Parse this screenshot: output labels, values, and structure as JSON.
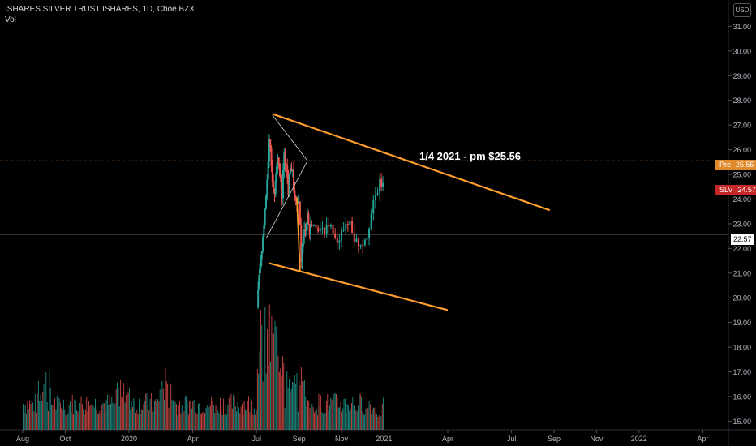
{
  "legend": {
    "title": "ISHARES SILVER TRUST ISHARES, 1D, Cboe BZX",
    "sub": "Vol"
  },
  "currency": "USD",
  "annotation": "1/4 2021 - pm $25.56",
  "price_tags": {
    "pre_symbol": "Pre",
    "pre_value": "25.55",
    "last_symbol": "SLV",
    "last_value": "24.57",
    "horizontal_value": "22.57"
  },
  "colors": {
    "background": "#000000",
    "up": "#26a69a",
    "down": "#ef5350",
    "trendline": "#ff9d2e",
    "pre_tag": "#e08a2b",
    "last_tag": "#c62828"
  },
  "chart_data": {
    "type": "candlestick",
    "title": "ISHARES SILVER TRUST ISHARES, 1D, Cboe BZX",
    "y_ticks": [
      15,
      16,
      17,
      18,
      19,
      20,
      21,
      22,
      23,
      24,
      25,
      26,
      27,
      28,
      29,
      30,
      31
    ],
    "y_tick_labels": [
      "15.00",
      "16.00",
      "17.00",
      "18.00",
      "19.00",
      "20.00",
      "21.00",
      "22.00",
      "23.00",
      "24.00",
      "25.00",
      "26.00",
      "27.00",
      "28.00",
      "29.00",
      "30.00",
      "31.00"
    ],
    "ylim": [
      14.85,
      31.9
    ],
    "x_ticks": [
      {
        "label": "Aug",
        "pos": 0.0
      },
      {
        "label": "Oct",
        "pos": 2.0
      },
      {
        "label": "2020",
        "pos": 5.0
      },
      {
        "label": "Apr",
        "pos": 8.0
      },
      {
        "label": "Jul",
        "pos": 11.0
      },
      {
        "label": "Sep",
        "pos": 13.0
      },
      {
        "label": "Nov",
        "pos": 15.0
      },
      {
        "label": "2021",
        "pos": 17.0
      },
      {
        "label": "Apr",
        "pos": 20.0
      },
      {
        "label": "Jul",
        "pos": 23.0
      },
      {
        "label": "Sep",
        "pos": 25.0
      },
      {
        "label": "Nov",
        "pos": 27.0
      },
      {
        "label": "2022",
        "pos": 29.0
      },
      {
        "label": "Apr",
        "pos": 32.0
      }
    ],
    "x_units": "months since Aug 2019",
    "price_path": [
      [
        11.05,
        19.6
      ],
      [
        11.1,
        20.6
      ],
      [
        11.2,
        21.4
      ],
      [
        11.3,
        22.6
      ],
      [
        11.4,
        23.4
      ],
      [
        11.5,
        24.8
      ],
      [
        11.6,
        26.6
      ],
      [
        11.7,
        25.5
      ],
      [
        11.8,
        24.2
      ],
      [
        11.9,
        24.6
      ],
      [
        12.0,
        25.8
      ],
      [
        12.1,
        25.0
      ],
      [
        12.2,
        24.0
      ],
      [
        12.3,
        26.0
      ],
      [
        12.4,
        25.3
      ],
      [
        12.5,
        24.3
      ],
      [
        12.6,
        25.4
      ],
      [
        12.7,
        25.0
      ],
      [
        12.8,
        24.0
      ],
      [
        12.9,
        23.6
      ],
      [
        13.0,
        24.1
      ],
      [
        13.1,
        21.6
      ],
      [
        13.2,
        22.4
      ],
      [
        13.3,
        22.9
      ],
      [
        13.4,
        23.4
      ],
      [
        13.5,
        22.6
      ],
      [
        13.6,
        23.1
      ],
      [
        13.8,
        22.7
      ],
      [
        14.0,
        23.0
      ],
      [
        14.2,
        22.4
      ],
      [
        14.4,
        23.1
      ],
      [
        14.6,
        22.6
      ],
      [
        14.8,
        22.1
      ],
      [
        15.0,
        22.9
      ],
      [
        15.2,
        22.8
      ],
      [
        15.4,
        23.1
      ],
      [
        15.6,
        22.4
      ],
      [
        15.8,
        22.2
      ],
      [
        16.0,
        22.3
      ],
      [
        16.2,
        22.6
      ],
      [
        16.4,
        23.4
      ],
      [
        16.6,
        24.1
      ],
      [
        16.8,
        24.6
      ],
      [
        16.95,
        24.57
      ]
    ],
    "trendlines": [
      {
        "from": [
          11.75,
          27.45
        ],
        "to": [
          24.8,
          23.55
        ]
      },
      {
        "from": [
          11.6,
          21.4
        ],
        "to": [
          20.0,
          19.5
        ]
      },
      {
        "from": [
          11.75,
          27.4
        ],
        "to": [
          13.4,
          25.55
        ]
      },
      {
        "from": [
          13.4,
          25.55
        ],
        "to": [
          11.45,
          22.4
        ]
      },
      {
        "from": [
          12.9,
          24.05
        ],
        "to": [
          13.05,
          21.05
        ]
      }
    ],
    "horizontal_lines": [
      {
        "y": 25.55,
        "style": "dotted",
        "color": "#e08a2b"
      },
      {
        "y": 22.57,
        "style": "solid",
        "color": "#6b6b6b"
      }
    ],
    "volume_region": [
      0.0,
      17.0
    ]
  }
}
